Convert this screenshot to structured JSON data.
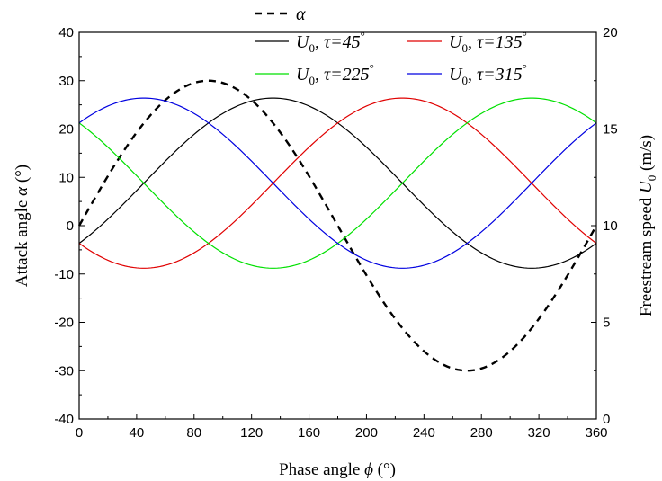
{
  "chart_data": {
    "type": "line",
    "xlabel": {
      "prefix": "Phase angle ",
      "symbol": "ϕ",
      "suffix": " (°)"
    },
    "ylabel": {
      "prefix": "Attack angle ",
      "symbol": "α",
      "suffix": " (°)"
    },
    "y2label": {
      "prefix": "Freestream speed ",
      "symbol": "U",
      "subscript": "0",
      "suffix": " (m/s)"
    },
    "xlim": [
      0,
      360
    ],
    "ylim": [
      -40,
      40
    ],
    "y2lim": [
      0,
      20
    ],
    "xticks": [
      0,
      40,
      80,
      120,
      160,
      200,
      240,
      280,
      320,
      360
    ],
    "yticks": [
      -40,
      -30,
      -20,
      -10,
      0,
      10,
      20,
      30,
      40
    ],
    "y2ticks": [
      0,
      5,
      10,
      15,
      20
    ],
    "grid": false,
    "legend_position": "top",
    "series": [
      {
        "name": "α",
        "axis": "left",
        "style": "dashed",
        "color": "#000000",
        "amplitude": 30,
        "mean": 0,
        "phase_shift": 0,
        "legend": {
          "symbol": "α",
          "sub": "",
          "tau": ""
        }
      },
      {
        "name": "U0, τ=45°",
        "axis": "right",
        "style": "solid",
        "color": "#000000",
        "amplitude": 4.4,
        "mean": 12.2,
        "phase_shift": 45,
        "legend": {
          "symbol": "U",
          "sub": "0",
          "tau": "τ=45"
        }
      },
      {
        "name": "U0, τ=135°",
        "axis": "right",
        "style": "solid",
        "color": "#e00000",
        "amplitude": 4.4,
        "mean": 12.2,
        "phase_shift": 135,
        "legend": {
          "symbol": "U",
          "sub": "0",
          "tau": "τ=135"
        }
      },
      {
        "name": "U0, τ=225°",
        "axis": "right",
        "style": "solid",
        "color": "#00e000",
        "amplitude": 4.4,
        "mean": 12.2,
        "phase_shift": 225,
        "legend": {
          "symbol": "U",
          "sub": "0",
          "tau": "τ=225"
        }
      },
      {
        "name": "U0, τ=315°",
        "axis": "right",
        "style": "solid",
        "color": "#0000e0",
        "amplitude": 4.4,
        "mean": 12.2,
        "phase_shift": 315,
        "legend": {
          "symbol": "U",
          "sub": "0",
          "tau": "τ=315"
        }
      }
    ]
  }
}
